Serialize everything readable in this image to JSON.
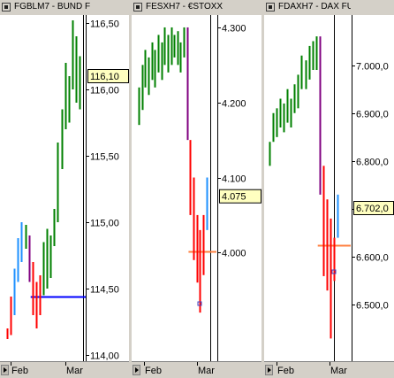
{
  "panels": [
    {
      "title": "FGBLM7 - BUND F",
      "ticks": [
        {
          "label": "116,50",
          "v": 116.5
        },
        {
          "label": "116,00",
          "v": 116.0
        },
        {
          "label": "115,50",
          "v": 115.5
        },
        {
          "label": "115,00",
          "v": 115.0
        },
        {
          "label": "114,50",
          "v": 114.5
        },
        {
          "label": "114,00",
          "v": 114.0
        }
      ],
      "ymin": 113.98,
      "ymax": 116.58,
      "price_label": "116,10",
      "price_value": 116.1,
      "hline": {
        "v": 114.44,
        "color": "#0000ff",
        "from_bar": 7
      },
      "x_labels": [
        "Feb",
        "Mar"
      ],
      "vline_bar": 20,
      "bars": [
        {
          "h": 114.2,
          "l": 114.12,
          "c": "#ff0000"
        },
        {
          "h": 114.44,
          "l": 114.15,
          "c": "#ff0000"
        },
        {
          "h": 114.65,
          "l": 114.3,
          "c": "#1e90ff"
        },
        {
          "h": 114.88,
          "l": 114.55,
          "c": "#1e90ff"
        },
        {
          "h": 115.0,
          "l": 114.7,
          "c": "#1e90ff"
        },
        {
          "h": 114.98,
          "l": 114.8,
          "c": "#008000"
        },
        {
          "h": 114.9,
          "l": 114.55,
          "c": "#800080"
        },
        {
          "h": 114.7,
          "l": 114.3,
          "c": "#ff0000"
        },
        {
          "h": 114.55,
          "l": 114.2,
          "c": "#ff0000"
        },
        {
          "h": 114.6,
          "l": 114.3,
          "c": "#ff0000"
        },
        {
          "h": 114.85,
          "l": 114.45,
          "c": "#008000"
        },
        {
          "h": 114.95,
          "l": 114.5,
          "c": "#008000"
        },
        {
          "h": 114.9,
          "l": 114.58,
          "c": "#008000"
        },
        {
          "h": 115.1,
          "l": 114.82,
          "c": "#008000"
        },
        {
          "h": 115.6,
          "l": 115.0,
          "c": "#008000"
        },
        {
          "h": 115.85,
          "l": 115.4,
          "c": "#008000"
        },
        {
          "h": 116.2,
          "l": 115.7,
          "c": "#008000"
        },
        {
          "h": 116.1,
          "l": 115.75,
          "c": "#008000"
        },
        {
          "h": 116.52,
          "l": 116.0,
          "c": "#008000"
        },
        {
          "h": 116.4,
          "l": 115.9,
          "c": "#008000"
        },
        {
          "h": 116.25,
          "l": 115.85,
          "c": "#008000"
        }
      ]
    },
    {
      "title": "FESXH7 - €STOXX",
      "ticks": [
        {
          "label": "4.300",
          "v": 4.3
        },
        {
          "label": "4.200",
          "v": 4.2
        },
        {
          "label": "4.100",
          "v": 4.1
        },
        {
          "label": "4.000",
          "v": 4.0
        }
      ],
      "ymin": 3.86,
      "ymax": 4.32,
      "price_label": "4.075",
      "price_value": 4.075,
      "hline": {
        "v": 4.002,
        "color": "#ff8040",
        "from_bar": 16
      },
      "x_labels": [
        "Feb",
        "Mar"
      ],
      "vline_bar": 21,
      "bars": [
        {
          "h": 4.22,
          "l": 4.17,
          "c": "#008000"
        },
        {
          "h": 4.25,
          "l": 4.19,
          "c": "#008000"
        },
        {
          "h": 4.27,
          "l": 4.22,
          "c": "#008000"
        },
        {
          "h": 4.26,
          "l": 4.21,
          "c": "#008000"
        },
        {
          "h": 4.28,
          "l": 4.23,
          "c": "#008000"
        },
        {
          "h": 4.27,
          "l": 4.22,
          "c": "#008000"
        },
        {
          "h": 4.29,
          "l": 4.24,
          "c": "#008000"
        },
        {
          "h": 4.28,
          "l": 4.23,
          "c": "#008000"
        },
        {
          "h": 4.3,
          "l": 4.25,
          "c": "#008000"
        },
        {
          "h": 4.29,
          "l": 4.24,
          "c": "#008000"
        },
        {
          "h": 4.3,
          "l": 4.25,
          "c": "#008000"
        },
        {
          "h": 4.29,
          "l": 4.26,
          "c": "#008000"
        },
        {
          "h": 4.295,
          "l": 4.25,
          "c": "#008000"
        },
        {
          "h": 4.28,
          "l": 4.24,
          "c": "#008000"
        },
        {
          "h": 4.3,
          "l": 4.26,
          "c": "#008000"
        },
        {
          "h": 4.3,
          "l": 4.15,
          "c": "#800080"
        },
        {
          "h": 4.15,
          "l": 4.05,
          "c": "#ff0000"
        },
        {
          "h": 4.1,
          "l": 3.99,
          "c": "#ff0000"
        },
        {
          "h": 4.05,
          "l": 3.96,
          "c": "#ff0000"
        },
        {
          "h": 4.03,
          "l": 3.92,
          "c": "#ff0000"
        },
        {
          "h": 4.05,
          "l": 3.97,
          "c": "#ff0000"
        },
        {
          "h": 4.1,
          "l": 4.03,
          "c": "#1e90ff"
        }
      ]
    },
    {
      "title": "FDAXH7 - DAX FU",
      "ticks": [
        {
          "label": "7.000,0",
          "v": 7000
        },
        {
          "label": "6.900,0",
          "v": 6900
        },
        {
          "label": "6.800,0",
          "v": 6800
        },
        {
          "label": "6.700,0",
          "v": 6700
        },
        {
          "label": "6.600,0",
          "v": 6600
        },
        {
          "label": "6.500,0",
          "v": 6500
        }
      ],
      "ymin": 6390,
      "ymax": 7110,
      "price_label": "6.702,0",
      "price_value": 6702,
      "hline": {
        "v": 6625,
        "color": "#ff8040",
        "from_bar": 14
      },
      "x_labels": [
        "Feb",
        "Mar"
      ],
      "vline_bar": 17,
      "bars": [
        {
          "h": 6840,
          "l": 6790,
          "c": "#008000"
        },
        {
          "h": 6900,
          "l": 6840,
          "c": "#008000"
        },
        {
          "h": 6910,
          "l": 6850,
          "c": "#008000"
        },
        {
          "h": 6930,
          "l": 6870,
          "c": "#008000"
        },
        {
          "h": 6920,
          "l": 6860,
          "c": "#008000"
        },
        {
          "h": 6950,
          "l": 6880,
          "c": "#008000"
        },
        {
          "h": 6930,
          "l": 6870,
          "c": "#008000"
        },
        {
          "h": 6960,
          "l": 6900,
          "c": "#008000"
        },
        {
          "h": 6980,
          "l": 6910,
          "c": "#008000"
        },
        {
          "h": 7020,
          "l": 6950,
          "c": "#008000"
        },
        {
          "h": 7010,
          "l": 6950,
          "c": "#008000"
        },
        {
          "h": 7040,
          "l": 6970,
          "c": "#008000"
        },
        {
          "h": 7050,
          "l": 6990,
          "c": "#008000"
        },
        {
          "h": 7060,
          "l": 6990,
          "c": "#008000"
        },
        {
          "h": 7060,
          "l": 6730,
          "c": "#800080"
        },
        {
          "h": 6790,
          "l": 6560,
          "c": "#ff0000"
        },
        {
          "h": 6720,
          "l": 6530,
          "c": "#ff0000"
        },
        {
          "h": 6680,
          "l": 6430,
          "c": "#ff0000"
        },
        {
          "h": 6640,
          "l": 6550,
          "c": "#ff0000"
        },
        {
          "h": 6730,
          "l": 6640,
          "c": "#1e90ff"
        }
      ]
    }
  ]
}
